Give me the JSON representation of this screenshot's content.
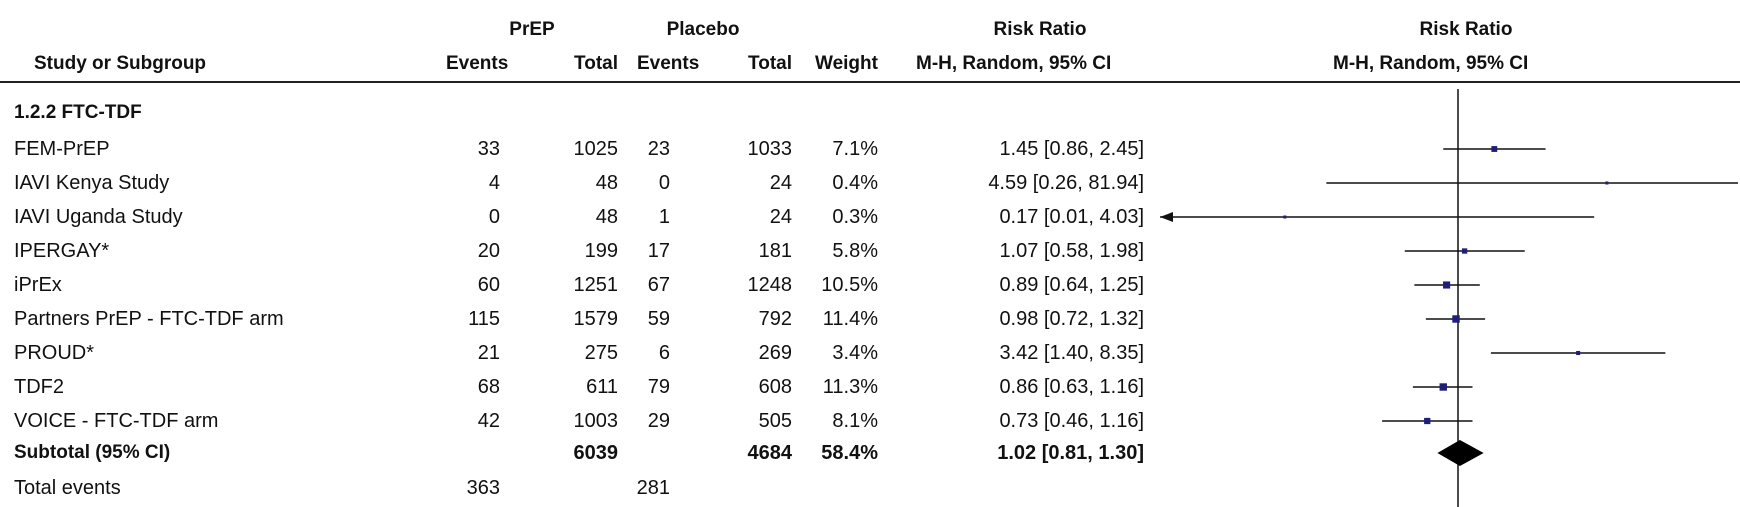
{
  "header": {
    "group_prep": "PrEP",
    "group_placebo": "Placebo",
    "risk_ratio": "Risk Ratio",
    "risk_ratio_plot": "Risk Ratio",
    "study_col": "Study or Subgroup",
    "events1": "Events",
    "total1": "Total",
    "events2": "Events",
    "total2": "Total",
    "weight": "Weight",
    "method": "M-H, Random, 95% CI",
    "method_plot": "M-H, Random, 95% CI"
  },
  "subgroup_label": "1.2.2 FTC-TDF",
  "subtotal": {
    "label": "Subtotal (95% CI)",
    "total1": "6039",
    "total2": "4684",
    "weight": "58.4%",
    "ci_text": "1.02 [0.81, 1.30]"
  },
  "total_events": {
    "label": "Total events",
    "events1": "363",
    "events2": "281"
  },
  "chart_data": {
    "type": "forest",
    "title": "Risk Ratio",
    "xlabel": "M-H, Random, 95% CI",
    "scale": "log",
    "null_value": 1,
    "studies": [
      {
        "name": "FEM-PrEP",
        "events1": "33",
        "total1": "1025",
        "events2": "23",
        "total2": "1033",
        "weight": "7.1%",
        "ci_text": "1.45 [0.86, 2.45]",
        "rr": 1.45,
        "lo": 0.86,
        "hi": 2.45
      },
      {
        "name": "IAVI Kenya Study",
        "events1": "4",
        "total1": "48",
        "events2": "0",
        "total2": "24",
        "weight": "0.4%",
        "ci_text": "4.59 [0.26, 81.94]",
        "rr": 4.59,
        "lo": 0.26,
        "hi": 81.94
      },
      {
        "name": "IAVI Uganda Study",
        "events1": "0",
        "total1": "48",
        "events2": "1",
        "total2": "24",
        "weight": "0.3%",
        "ci_text": "0.17 [0.01, 4.03]",
        "rr": 0.17,
        "lo": 0.01,
        "hi": 4.03
      },
      {
        "name": "IPERGAY*",
        "events1": "20",
        "total1": "199",
        "events2": "17",
        "total2": "181",
        "weight": "5.8%",
        "ci_text": "1.07 [0.58, 1.98]",
        "rr": 1.07,
        "lo": 0.58,
        "hi": 1.98
      },
      {
        "name": "iPrEx",
        "events1": "60",
        "total1": "1251",
        "events2": "67",
        "total2": "1248",
        "weight": "10.5%",
        "ci_text": "0.89 [0.64, 1.25]",
        "rr": 0.89,
        "lo": 0.64,
        "hi": 1.25
      },
      {
        "name": "Partners PrEP - FTC-TDF arm",
        "events1": "115",
        "total1": "1579",
        "events2": "59",
        "total2": "792",
        "weight": "11.4%",
        "ci_text": "0.98 [0.72, 1.32]",
        "rr": 0.98,
        "lo": 0.72,
        "hi": 1.32
      },
      {
        "name": "PROUD*",
        "events1": "21",
        "total1": "275",
        "events2": "6",
        "total2": "269",
        "weight": "3.4%",
        "ci_text": "3.42 [1.40, 8.35]",
        "rr": 3.42,
        "lo": 1.4,
        "hi": 8.35
      },
      {
        "name": "TDF2",
        "events1": "68",
        "total1": "611",
        "events2": "79",
        "total2": "608",
        "weight": "11.3%",
        "ci_text": "0.86 [0.63, 1.16]",
        "rr": 0.86,
        "lo": 0.63,
        "hi": 1.16
      },
      {
        "name": "VOICE - FTC-TDF arm",
        "events1": "42",
        "total1": "1003",
        "events2": "29",
        "total2": "505",
        "weight": "8.1%",
        "ci_text": "0.73 [0.46, 1.16]",
        "rr": 0.73,
        "lo": 0.46,
        "hi": 1.16
      }
    ],
    "pooled": {
      "rr": 1.02,
      "lo": 0.81,
      "hi": 1.3
    },
    "colors": {
      "marker": "#1f1f7a",
      "line": "#111111",
      "diamond": "#000000"
    }
  }
}
